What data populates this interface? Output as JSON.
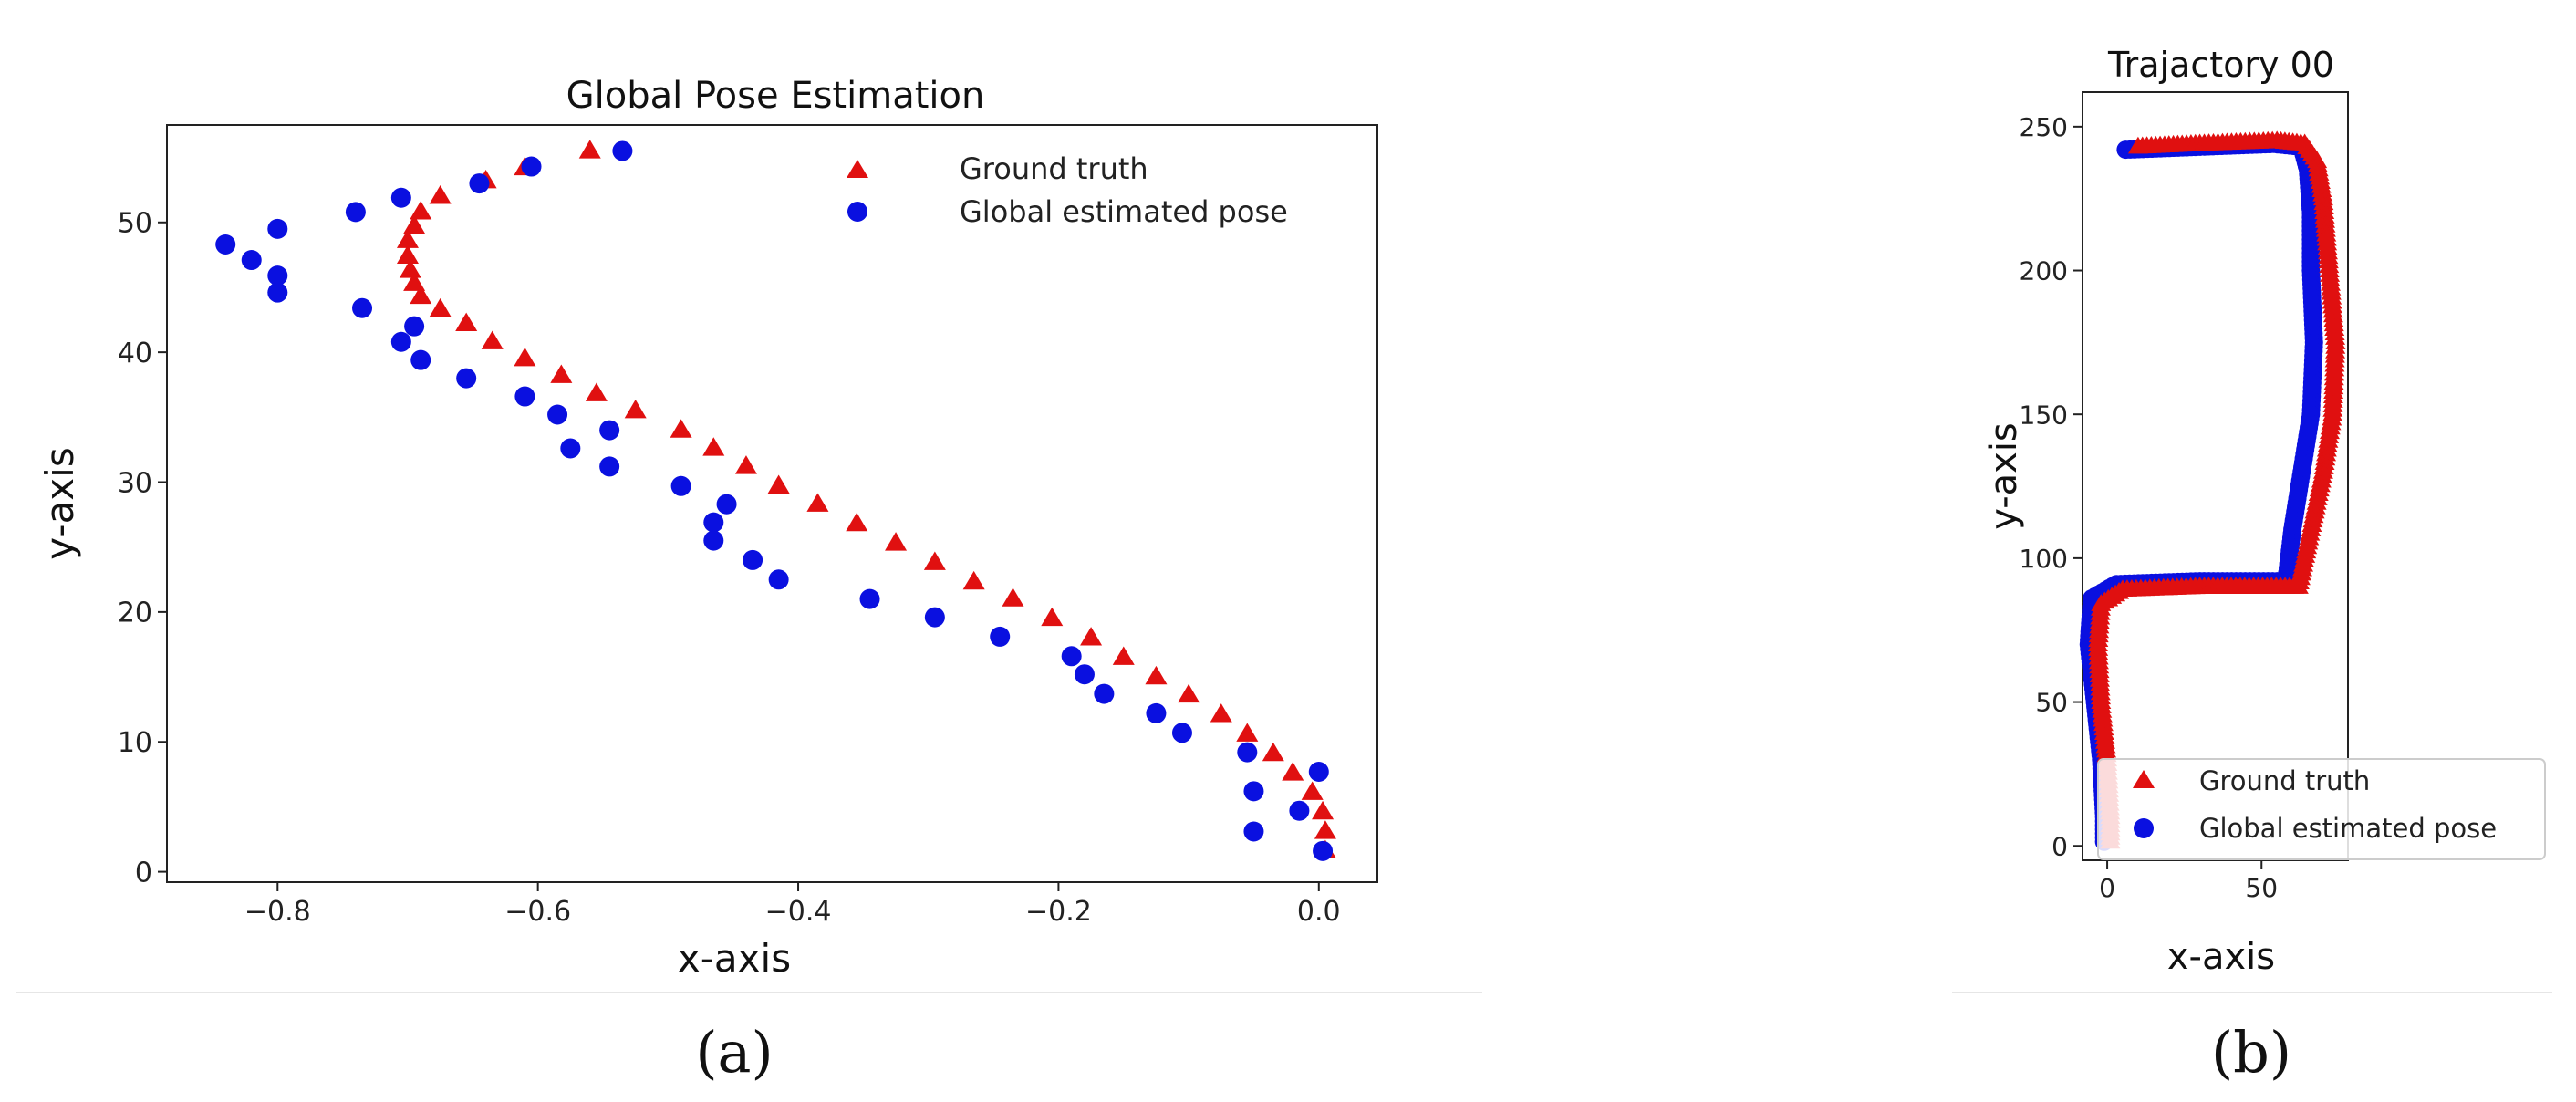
{
  "chart_data": [
    {
      "type": "scatter",
      "panel_label": "(a)",
      "title": "Global Pose Estimation",
      "xlabel": "x-axis",
      "ylabel": "y-axis",
      "xlim": [
        -0.885,
        0.045
      ],
      "ylim": [
        -0.8,
        57.5
      ],
      "xticks": [
        -0.8,
        -0.6,
        -0.4,
        -0.2,
        0.0
      ],
      "xtick_labels": [
        "−0.8",
        "−0.6",
        "−0.4",
        "−0.2",
        "0.0"
      ],
      "yticks": [
        0,
        10,
        20,
        30,
        40,
        50
      ],
      "ytick_labels": [
        "0",
        "10",
        "20",
        "30",
        "40",
        "50"
      ],
      "grid": false,
      "legend": {
        "position": "top-right",
        "entries": [
          "Ground truth",
          "Global estimated pose"
        ]
      },
      "series": [
        {
          "name": "Ground truth",
          "marker": "triangle",
          "color": "#e01010",
          "points": [
            [
              -0.56,
              55.5
            ],
            [
              -0.61,
              54.2
            ],
            [
              -0.64,
              53.2
            ],
            [
              -0.675,
              52.0
            ],
            [
              -0.69,
              50.8
            ],
            [
              -0.695,
              49.7
            ],
            [
              -0.7,
              48.6
            ],
            [
              -0.7,
              47.4
            ],
            [
              -0.698,
              46.3
            ],
            [
              -0.695,
              45.3
            ],
            [
              -0.69,
              44.3
            ],
            [
              -0.675,
              43.3
            ],
            [
              -0.655,
              42.2
            ],
            [
              -0.635,
              40.8
            ],
            [
              -0.61,
              39.5
            ],
            [
              -0.582,
              38.2
            ],
            [
              -0.555,
              36.8
            ],
            [
              -0.525,
              35.5
            ],
            [
              -0.49,
              34.0
            ],
            [
              -0.465,
              32.6
            ],
            [
              -0.44,
              31.2
            ],
            [
              -0.415,
              29.7
            ],
            [
              -0.385,
              28.3
            ],
            [
              -0.355,
              26.8
            ],
            [
              -0.325,
              25.3
            ],
            [
              -0.295,
              23.8
            ],
            [
              -0.265,
              22.3
            ],
            [
              -0.235,
              21.0
            ],
            [
              -0.205,
              19.5
            ],
            [
              -0.175,
              18.0
            ],
            [
              -0.15,
              16.5
            ],
            [
              -0.125,
              15.0
            ],
            [
              -0.1,
              13.6
            ],
            [
              -0.075,
              12.1
            ],
            [
              -0.055,
              10.6
            ],
            [
              -0.035,
              9.1
            ],
            [
              -0.02,
              7.6
            ],
            [
              -0.005,
              6.1
            ],
            [
              0.003,
              4.6
            ],
            [
              0.005,
              3.1
            ],
            [
              0.005,
              1.6
            ]
          ]
        },
        {
          "name": "Global estimated pose",
          "marker": "circle",
          "color": "#0a10e0",
          "points": [
            [
              -0.535,
              55.5
            ],
            [
              -0.605,
              54.3
            ],
            [
              -0.645,
              53.0
            ],
            [
              -0.705,
              51.9
            ],
            [
              -0.74,
              50.8
            ],
            [
              -0.8,
              49.5
            ],
            [
              -0.84,
              48.3
            ],
            [
              -0.82,
              47.1
            ],
            [
              -0.8,
              45.9
            ],
            [
              -0.8,
              44.6
            ],
            [
              -0.735,
              43.4
            ],
            [
              -0.695,
              42.0
            ],
            [
              -0.705,
              40.8
            ],
            [
              -0.69,
              39.4
            ],
            [
              -0.655,
              38.0
            ],
            [
              -0.61,
              36.6
            ],
            [
              -0.585,
              35.2
            ],
            [
              -0.545,
              34.0
            ],
            [
              -0.575,
              32.6
            ],
            [
              -0.545,
              31.2
            ],
            [
              -0.49,
              29.7
            ],
            [
              -0.455,
              28.3
            ],
            [
              -0.465,
              26.9
            ],
            [
              -0.465,
              25.5
            ],
            [
              -0.435,
              24.0
            ],
            [
              -0.415,
              22.5
            ],
            [
              -0.345,
              21.0
            ],
            [
              -0.295,
              19.6
            ],
            [
              -0.245,
              18.1
            ],
            [
              -0.19,
              16.6
            ],
            [
              -0.18,
              15.2
            ],
            [
              -0.165,
              13.7
            ],
            [
              -0.125,
              12.2
            ],
            [
              -0.105,
              10.7
            ],
            [
              -0.055,
              9.2
            ],
            [
              0.0,
              7.7
            ],
            [
              -0.05,
              6.2
            ],
            [
              -0.015,
              4.7
            ],
            [
              -0.05,
              3.1
            ],
            [
              0.003,
              1.6
            ]
          ]
        }
      ]
    },
    {
      "type": "scatter",
      "panel_label": "(b)",
      "title": "Trajactory 00",
      "xlabel": "x-axis",
      "ylabel": "y-axis",
      "xlim": [
        -8,
        78
      ],
      "ylim": [
        -5,
        262
      ],
      "xticks": [
        0,
        50
      ],
      "xtick_labels": [
        "0",
        "50"
      ],
      "yticks": [
        0,
        50,
        100,
        150,
        200,
        250
      ],
      "ytick_labels": [
        "0",
        "50",
        "100",
        "150",
        "200",
        "250"
      ],
      "grid": false,
      "legend": {
        "position": "lower-right",
        "entries": [
          "Ground truth",
          "Global estimated pose"
        ]
      },
      "series": [
        {
          "name": "Ground truth",
          "marker": "triangle",
          "color": "#e01010",
          "path": [
            [
              10,
              243
            ],
            [
              30,
              244
            ],
            [
              55,
              245
            ],
            [
              64,
              244
            ],
            [
              68,
              238
            ],
            [
              70,
              225
            ],
            [
              72,
              200
            ],
            [
              74,
              175
            ],
            [
              73,
              150
            ],
            [
              70,
              130
            ],
            [
              66,
              110
            ],
            [
              62,
              90
            ],
            [
              30,
              90
            ],
            [
              5,
              89
            ],
            [
              -2,
              84
            ],
            [
              -3,
              70
            ],
            [
              -2,
              50
            ],
            [
              0,
              30
            ],
            [
              1,
              10
            ],
            [
              1,
              0
            ]
          ]
        },
        {
          "name": "Global estimated pose",
          "marker": "circle",
          "color": "#0a10e0",
          "path": [
            [
              6,
              242
            ],
            [
              30,
              243
            ],
            [
              54,
              244
            ],
            [
              63,
              243
            ],
            [
              65,
              235
            ],
            [
              66,
              220
            ],
            [
              66,
              200
            ],
            [
              67,
              175
            ],
            [
              66,
              150
            ],
            [
              63,
              130
            ],
            [
              60,
              110
            ],
            [
              58,
              92
            ],
            [
              30,
              92
            ],
            [
              3,
              91
            ],
            [
              -5,
              86
            ],
            [
              -6,
              70
            ],
            [
              -4,
              50
            ],
            [
              -2,
              30
            ],
            [
              -1,
              10
            ],
            [
              -1,
              0
            ]
          ]
        }
      ]
    }
  ]
}
